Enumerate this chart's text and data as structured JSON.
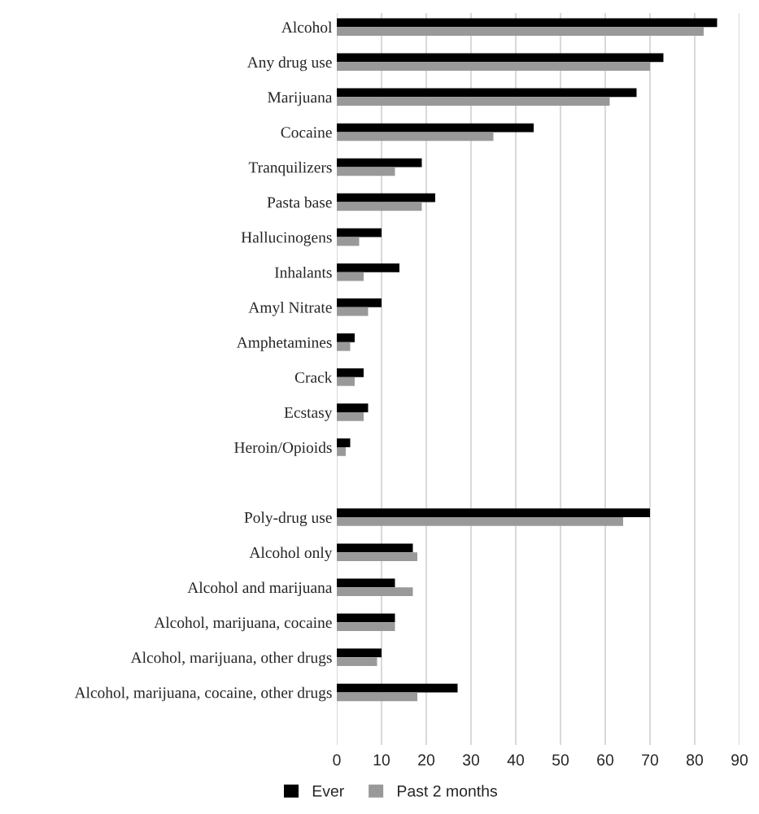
{
  "chart_data": {
    "type": "bar",
    "orientation": "horizontal",
    "categories": [
      "Alcohol",
      "Any drug use",
      "Marijuana",
      "Cocaine",
      "Tranquilizers",
      "Pasta base",
      "Hallucinogens",
      "Inhalants",
      "Amyl Nitrate",
      "Amphetamines",
      "Crack",
      "Ecstasy",
      "Heroin/Opioids",
      null,
      "Poly-drug use",
      "Alcohol only",
      "Alcohol and marijuana",
      "Alcohol, marijuana, cocaine",
      "Alcohol, marijuana, other drugs",
      "Alcohol, marijuana, cocaine, other drugs"
    ],
    "series": [
      {
        "name": "Ever",
        "color": "#000000",
        "values": [
          85,
          73,
          67,
          44,
          19,
          22,
          10,
          14,
          10,
          4,
          6,
          7,
          3,
          null,
          70,
          17,
          13,
          13,
          10,
          27
        ]
      },
      {
        "name": "Past 2 months",
        "color": "#999999",
        "values": [
          82,
          70,
          61,
          35,
          13,
          19,
          5,
          6,
          7,
          3,
          4,
          6,
          2,
          null,
          64,
          18,
          17,
          13,
          9,
          18
        ]
      }
    ],
    "xlim": [
      0,
      90
    ],
    "xticks": [
      0,
      10,
      20,
      30,
      40,
      50,
      60,
      70,
      80,
      90
    ],
    "grid": "x",
    "legend": "bottom"
  }
}
